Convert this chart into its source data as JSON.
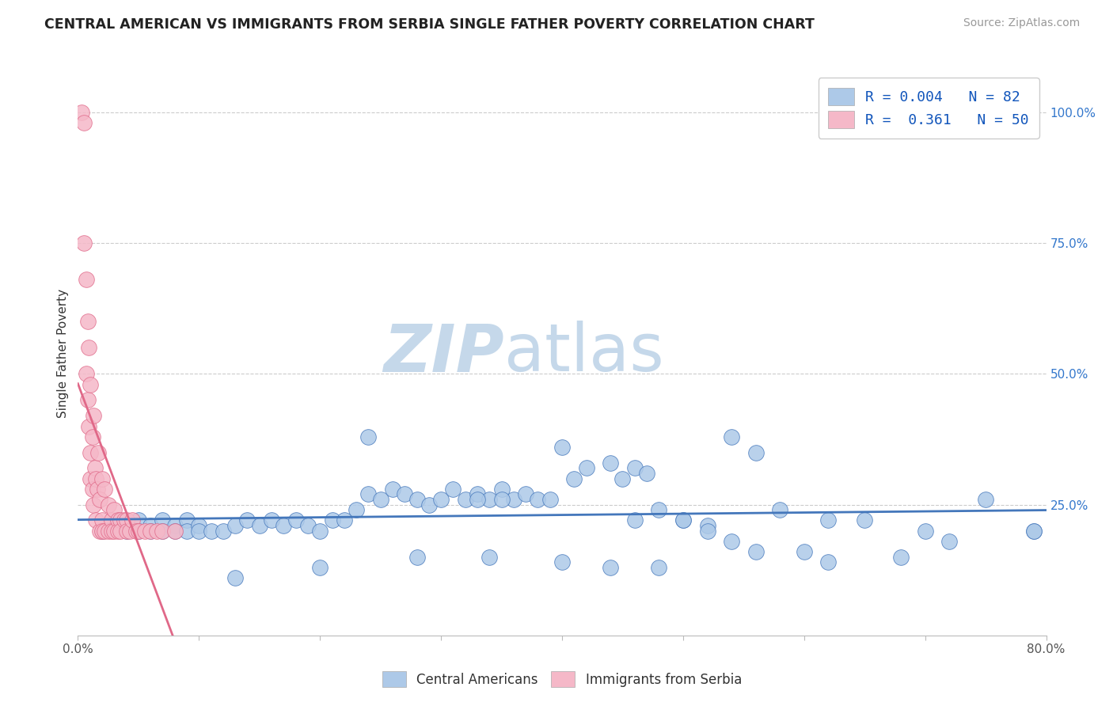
{
  "title": "CENTRAL AMERICAN VS IMMIGRANTS FROM SERBIA SINGLE FATHER POVERTY CORRELATION CHART",
  "source_text": "Source: ZipAtlas.com",
  "ylabel": "Single Father Poverty",
  "x_min": 0.0,
  "x_max": 0.8,
  "y_min": 0.0,
  "y_max": 1.08,
  "x_ticks": [
    0.0,
    0.1,
    0.2,
    0.3,
    0.4,
    0.5,
    0.6,
    0.7,
    0.8
  ],
  "x_tick_labels": [
    "0.0%",
    "",
    "",
    "",
    "",
    "",
    "",
    "",
    "80.0%"
  ],
  "y_ticks_right": [
    0.25,
    0.5,
    0.75,
    1.0
  ],
  "y_tick_labels_right": [
    "25.0%",
    "50.0%",
    "75.0%",
    "100.0%"
  ],
  "legend_r1": "R = 0.004",
  "legend_n1": "N = 82",
  "legend_r2": "R =  0.361",
  "legend_n2": "N = 50",
  "color_blue": "#adc9e8",
  "color_pink": "#f5b8c8",
  "color_blue_dark": "#4477bb",
  "color_pink_dark": "#e06888",
  "watermark_zip": "#c5d8ea",
  "watermark_atlas": "#c5d8ea",
  "blue_x": [
    0.02,
    0.03,
    0.04,
    0.05,
    0.05,
    0.06,
    0.06,
    0.07,
    0.07,
    0.08,
    0.08,
    0.09,
    0.09,
    0.1,
    0.1,
    0.11,
    0.12,
    0.13,
    0.14,
    0.15,
    0.16,
    0.17,
    0.18,
    0.19,
    0.2,
    0.21,
    0.22,
    0.23,
    0.24,
    0.25,
    0.26,
    0.27,
    0.28,
    0.29,
    0.3,
    0.31,
    0.32,
    0.33,
    0.34,
    0.35,
    0.36,
    0.37,
    0.38,
    0.39,
    0.4,
    0.41,
    0.42,
    0.44,
    0.45,
    0.46,
    0.47,
    0.48,
    0.5,
    0.52,
    0.54,
    0.56,
    0.58,
    0.6,
    0.62,
    0.65,
    0.7,
    0.75,
    0.79,
    0.13,
    0.2,
    0.24,
    0.28,
    0.33,
    0.34,
    0.35,
    0.4,
    0.44,
    0.46,
    0.48,
    0.5,
    0.52,
    0.54,
    0.56,
    0.62,
    0.68,
    0.72,
    0.79
  ],
  "blue_y": [
    0.2,
    0.21,
    0.2,
    0.22,
    0.2,
    0.21,
    0.2,
    0.22,
    0.2,
    0.21,
    0.2,
    0.22,
    0.2,
    0.21,
    0.2,
    0.2,
    0.2,
    0.21,
    0.22,
    0.21,
    0.22,
    0.21,
    0.22,
    0.21,
    0.2,
    0.22,
    0.22,
    0.24,
    0.27,
    0.26,
    0.28,
    0.27,
    0.26,
    0.25,
    0.26,
    0.28,
    0.26,
    0.27,
    0.26,
    0.28,
    0.26,
    0.27,
    0.26,
    0.26,
    0.36,
    0.3,
    0.32,
    0.33,
    0.3,
    0.32,
    0.31,
    0.24,
    0.22,
    0.21,
    0.38,
    0.35,
    0.24,
    0.16,
    0.22,
    0.22,
    0.2,
    0.26,
    0.2,
    0.11,
    0.13,
    0.38,
    0.15,
    0.26,
    0.15,
    0.26,
    0.14,
    0.13,
    0.22,
    0.13,
    0.22,
    0.2,
    0.18,
    0.16,
    0.14,
    0.15,
    0.18,
    0.2
  ],
  "pink_x": [
    0.003,
    0.005,
    0.005,
    0.007,
    0.007,
    0.008,
    0.008,
    0.009,
    0.009,
    0.01,
    0.01,
    0.01,
    0.012,
    0.012,
    0.013,
    0.013,
    0.014,
    0.015,
    0.015,
    0.016,
    0.017,
    0.018,
    0.018,
    0.02,
    0.02,
    0.02,
    0.022,
    0.022,
    0.025,
    0.025,
    0.028,
    0.028,
    0.03,
    0.03,
    0.033,
    0.033,
    0.035,
    0.035,
    0.038,
    0.04,
    0.04,
    0.043,
    0.045,
    0.048,
    0.05,
    0.055,
    0.06,
    0.065,
    0.07,
    0.08
  ],
  "pink_y": [
    1.0,
    0.98,
    0.75,
    0.68,
    0.5,
    0.6,
    0.45,
    0.55,
    0.4,
    0.48,
    0.35,
    0.3,
    0.38,
    0.28,
    0.42,
    0.25,
    0.32,
    0.3,
    0.22,
    0.28,
    0.35,
    0.26,
    0.2,
    0.3,
    0.22,
    0.2,
    0.28,
    0.2,
    0.25,
    0.2,
    0.22,
    0.2,
    0.24,
    0.2,
    0.22,
    0.2,
    0.22,
    0.2,
    0.22,
    0.22,
    0.2,
    0.2,
    0.22,
    0.2,
    0.2,
    0.2,
    0.2,
    0.2,
    0.2,
    0.2
  ]
}
